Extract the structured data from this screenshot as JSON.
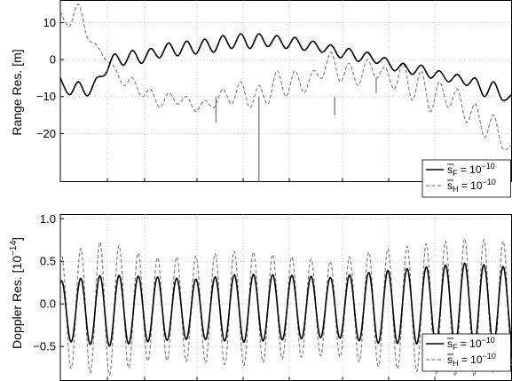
{
  "chart_data": [
    {
      "type": "line",
      "ylabel": "Range Res. [m]",
      "ylim": [
        -33,
        16
      ],
      "yticks": [
        10,
        0,
        -10,
        -20
      ],
      "ytick_labels": [
        "10",
        "0",
        "−10",
        "−20"
      ],
      "grid": true,
      "legend_placement": "lower-right",
      "legend": [
        {
          "base": "s",
          "bar": true,
          "sub": "F",
          "rhs": " = 10",
          "exp": "−10",
          "style": "solid"
        },
        {
          "base": "s",
          "bar": true,
          "sub": "H",
          "rhs": " = 10",
          "exp": "−10",
          "style": "dashed"
        }
      ],
      "series": [
        {
          "style": "solid",
          "color": "#000000",
          "x": [
            0,
            0.02,
            0.04,
            0.06,
            0.08,
            0.1,
            0.12,
            0.14,
            0.16,
            0.18,
            0.2,
            0.22,
            0.24,
            0.26,
            0.28,
            0.3,
            0.32,
            0.34,
            0.36,
            0.38,
            0.4,
            0.42,
            0.44,
            0.46,
            0.48,
            0.5,
            0.52,
            0.54,
            0.56,
            0.58,
            0.6,
            0.62,
            0.64,
            0.66,
            0.68,
            0.7,
            0.72,
            0.74,
            0.76,
            0.78,
            0.8,
            0.82,
            0.84,
            0.86,
            0.88,
            0.9,
            0.92,
            0.94,
            0.96,
            0.98,
            1.0
          ],
          "values": [
            -5,
            -9.5,
            -6,
            -9.8,
            -5,
            -4,
            1.5,
            -1.5,
            2.5,
            -1,
            3,
            0.5,
            4.5,
            1,
            5,
            1.5,
            5.5,
            2,
            6.5,
            3,
            7,
            3,
            7,
            3.5,
            6.5,
            3,
            6,
            2.5,
            5,
            2,
            4,
            0.5,
            3,
            -0.5,
            2,
            -1,
            0.5,
            -3,
            -1,
            -4,
            -1.5,
            -5,
            -3,
            -6,
            -4,
            -7,
            -5,
            -10,
            -6,
            -11,
            -9.5
          ]
        },
        {
          "style": "dashed",
          "color": "#808080",
          "x": [
            0,
            0.02,
            0.04,
            0.06,
            0.08,
            0.1,
            0.12,
            0.14,
            0.16,
            0.18,
            0.2,
            0.22,
            0.24,
            0.26,
            0.28,
            0.3,
            0.32,
            0.34,
            0.36,
            0.38,
            0.4,
            0.42,
            0.44,
            0.46,
            0.48,
            0.5,
            0.52,
            0.54,
            0.56,
            0.58,
            0.6,
            0.62,
            0.64,
            0.66,
            0.68,
            0.7,
            0.72,
            0.74,
            0.76,
            0.78,
            0.8,
            0.82,
            0.84,
            0.86,
            0.88,
            0.9,
            0.92,
            0.94,
            0.96,
            0.98,
            1.0
          ],
          "values": [
            13,
            9,
            15,
            6,
            4,
            0,
            -2,
            -7,
            -5,
            -10,
            -8,
            -13,
            -9,
            -12,
            -10,
            -14,
            -11,
            -13,
            -8,
            -12,
            -6,
            -13,
            -7,
            -12,
            -3,
            -10,
            -3,
            -9,
            -3,
            -5,
            2,
            -6,
            -1,
            -7,
            0,
            -5,
            -2,
            -8,
            -1,
            -11,
            -3,
            -14,
            -6,
            -13,
            -8,
            -17,
            -12,
            -21,
            -15,
            -24,
            -23
          ]
        }
      ],
      "spikes": [
        {
          "x": 0.44,
          "y": -33
        },
        {
          "x": 0.608,
          "y": -15
        },
        {
          "x": 0.345,
          "y": -17
        },
        {
          "x": 0.7,
          "y": -9
        }
      ]
    },
    {
      "type": "line",
      "ylabel": "Doppler Res. [10−14]",
      "ylim": [
        -0.9,
        1.05
      ],
      "yticks": [
        1.0,
        0.5,
        0.0,
        -0.5
      ],
      "ytick_labels": [
        "1.0",
        "0.5",
        "0.0",
        "−0.5"
      ],
      "grid": true,
      "legend_placement": "lower-right",
      "legend": [
        {
          "base": "s",
          "bar": true,
          "sub": "F",
          "rhs": " = 10",
          "exp": "−10",
          "style": "solid"
        },
        {
          "base": "s",
          "bar": true,
          "sub": "H",
          "rhs": " = 10",
          "exp": "−10",
          "style": "dashed"
        }
      ],
      "series": [
        {
          "style": "solid",
          "color": "#000000",
          "oscillation": "sinusoid",
          "cycles": 23.5,
          "phase": 1.2,
          "envelope_x": [
            0,
            0.1,
            0.2,
            0.3,
            0.4,
            0.5,
            0.6,
            0.7,
            0.8,
            0.9,
            1.0
          ],
          "offset": [
            -0.08,
            -0.08,
            -0.06,
            -0.06,
            -0.05,
            -0.04,
            -0.04,
            -0.04,
            -0.02,
            0.0,
            -0.02
          ],
          "amplitude": [
            0.35,
            0.42,
            0.38,
            0.35,
            0.4,
            0.38,
            0.35,
            0.42,
            0.45,
            0.48,
            0.45
          ]
        },
        {
          "style": "dashed",
          "color": "#808080",
          "oscillation": "sinusoid",
          "cycles": 23.5,
          "phase": 1.2,
          "envelope_x": [
            0,
            0.1,
            0.2,
            0.3,
            0.4,
            0.5,
            0.6,
            0.7,
            0.8,
            0.9,
            1.0
          ],
          "offset": [
            -0.08,
            -0.05,
            -0.06,
            -0.06,
            -0.05,
            -0.04,
            -0.05,
            -0.05,
            -0.05,
            -0.05,
            -0.02
          ],
          "amplitude": [
            0.65,
            0.8,
            0.6,
            0.62,
            0.68,
            0.6,
            0.55,
            0.68,
            0.75,
            0.82,
            0.75
          ]
        }
      ]
    }
  ]
}
